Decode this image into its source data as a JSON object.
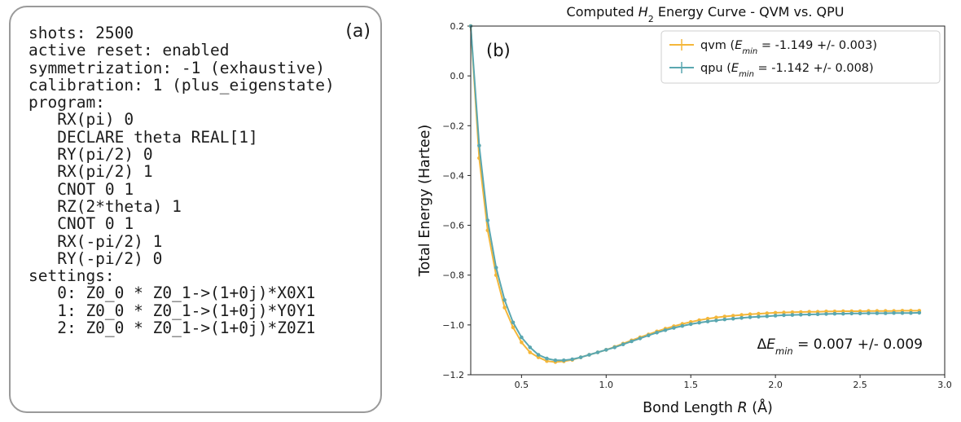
{
  "panel_a": {
    "label": "(a)",
    "code_lines": [
      "shots: 2500",
      "active reset: enabled",
      "symmetrization: -1 (exhaustive)",
      "calibration: 1 (plus_eigenstate)",
      "program:",
      "   RX(pi) 0",
      "   DECLARE theta REAL[1]",
      "   RY(pi/2) 0",
      "   RX(pi/2) 1",
      "   CNOT 0 1",
      "   RZ(2*theta) 1",
      "   CNOT 0 1",
      "   RX(-pi/2) 1",
      "   RY(-pi/2) 0",
      "settings:",
      "   0: Z0_0 * Z0_1->(1+0j)*X0X1",
      "   1: Z0_0 * Z0_1->(1+0j)*Y0Y1",
      "   2: Z0_0 * Z0_1->(1+0j)*Z0Z1"
    ]
  },
  "chart_data": {
    "type": "line",
    "panel_label": "(b)",
    "title": {
      "pre": "Computed ",
      "var": "H",
      "sub": "2",
      "post": " Energy Curve - QVM vs. QPU"
    },
    "xlabel": {
      "pre": "Bond Length ",
      "var": "R",
      "post": " (Å)"
    },
    "ylabel": "Total Energy (Hartee)",
    "xlim": [
      0.2,
      3.0
    ],
    "ylim": [
      -1.2,
      0.2
    ],
    "xticks": [
      "0.5",
      "1.0",
      "1.5",
      "2.0",
      "2.5",
      "3.0"
    ],
    "yticks": [
      "0.2",
      "0.0",
      "−0.2",
      "−0.4",
      "−0.6",
      "−0.8",
      "−1.0",
      "−1.2"
    ],
    "grid": false,
    "legend_position": "top-right",
    "series": [
      {
        "name": "qvm",
        "legend_stat": "-1.149 +/- 0.003",
        "color": "#f4b73a",
        "x": [
          0.2,
          0.25,
          0.3,
          0.35,
          0.4,
          0.45,
          0.5,
          0.55,
          0.6,
          0.65,
          0.7,
          0.75,
          0.8,
          0.85,
          0.9,
          0.95,
          1.0,
          1.05,
          1.1,
          1.15,
          1.2,
          1.25,
          1.3,
          1.35,
          1.4,
          1.45,
          1.5,
          1.55,
          1.6,
          1.65,
          1.7,
          1.75,
          1.8,
          1.85,
          1.9,
          1.95,
          2.0,
          2.05,
          2.1,
          2.15,
          2.2,
          2.25,
          2.3,
          2.35,
          2.4,
          2.45,
          2.5,
          2.55,
          2.6,
          2.65,
          2.7,
          2.75,
          2.8,
          2.85
        ],
        "y": [
          0.2,
          -0.33,
          -0.62,
          -0.8,
          -0.93,
          -1.01,
          -1.07,
          -1.11,
          -1.13,
          -1.145,
          -1.149,
          -1.146,
          -1.14,
          -1.13,
          -1.12,
          -1.11,
          -1.1,
          -1.088,
          -1.075,
          -1.062,
          -1.05,
          -1.038,
          -1.026,
          -1.015,
          -1.005,
          -0.996,
          -0.988,
          -0.981,
          -0.975,
          -0.97,
          -0.966,
          -0.963,
          -0.96,
          -0.957,
          -0.955,
          -0.953,
          -0.951,
          -0.95,
          -0.949,
          -0.948,
          -0.947,
          -0.947,
          -0.946,
          -0.946,
          -0.945,
          -0.945,
          -0.945,
          -0.944,
          -0.944,
          -0.944,
          -0.944,
          -0.943,
          -0.943,
          -0.943
        ]
      },
      {
        "name": "qpu",
        "legend_stat": "-1.142 +/- 0.008",
        "color": "#5aa7b0",
        "x": [
          0.2,
          0.25,
          0.3,
          0.35,
          0.4,
          0.45,
          0.5,
          0.55,
          0.6,
          0.65,
          0.7,
          0.75,
          0.8,
          0.85,
          0.9,
          0.95,
          1.0,
          1.05,
          1.1,
          1.15,
          1.2,
          1.25,
          1.3,
          1.35,
          1.4,
          1.45,
          1.5,
          1.55,
          1.6,
          1.65,
          1.7,
          1.75,
          1.8,
          1.85,
          1.9,
          1.95,
          2.0,
          2.05,
          2.1,
          2.15,
          2.2,
          2.25,
          2.3,
          2.35,
          2.4,
          2.45,
          2.5,
          2.55,
          2.6,
          2.65,
          2.7,
          2.75,
          2.8,
          2.85
        ],
        "y": [
          0.2,
          -0.28,
          -0.58,
          -0.77,
          -0.9,
          -0.99,
          -1.05,
          -1.09,
          -1.12,
          -1.135,
          -1.142,
          -1.142,
          -1.138,
          -1.13,
          -1.12,
          -1.11,
          -1.1,
          -1.09,
          -1.078,
          -1.066,
          -1.054,
          -1.042,
          -1.031,
          -1.021,
          -1.012,
          -1.004,
          -0.997,
          -0.991,
          -0.986,
          -0.982,
          -0.978,
          -0.975,
          -0.972,
          -0.969,
          -0.967,
          -0.965,
          -0.963,
          -0.961,
          -0.96,
          -0.959,
          -0.958,
          -0.957,
          -0.956,
          -0.955,
          -0.955,
          -0.954,
          -0.954,
          -0.953,
          -0.953,
          -0.953,
          -0.952,
          -0.952,
          -0.952,
          -0.951
        ]
      }
    ],
    "annotation": {
      "pre": "Δ",
      "var": "E",
      "sub": "min",
      "post": " = 0.007 +/- 0.009"
    }
  }
}
